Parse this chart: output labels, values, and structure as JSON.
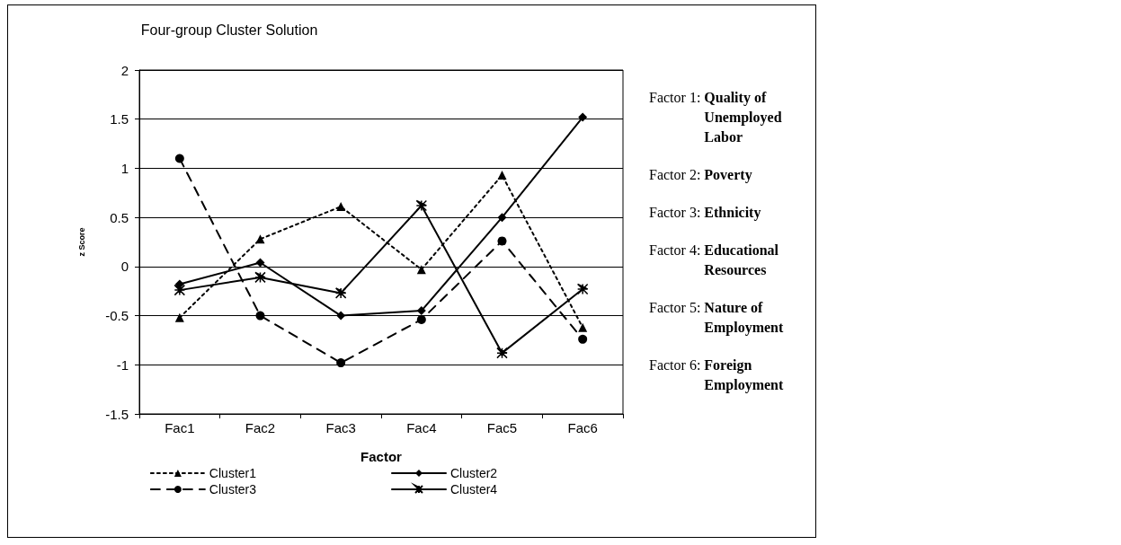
{
  "chart_data": {
    "type": "line",
    "title": "Four-group Cluster Solution",
    "xlabel": "Factor",
    "ylabel": "z Score",
    "categories": [
      "Fac1",
      "Fac2",
      "Fac3",
      "Fac4",
      "Fac5",
      "Fac6"
    ],
    "series": [
      {
        "name": "Cluster1",
        "color": "#000000",
        "marker": "triangle",
        "line_style": "dotted",
        "values": [
          -0.52,
          0.28,
          0.61,
          -0.03,
          0.93,
          -0.62
        ]
      },
      {
        "name": "Cluster2",
        "color": "#000000",
        "marker": "diamond",
        "line_style": "solid",
        "values": [
          -0.18,
          0.04,
          -0.5,
          -0.45,
          0.5,
          1.52
        ]
      },
      {
        "name": "Cluster3",
        "color": "#000000",
        "marker": "circle",
        "line_style": "dashed",
        "values": [
          1.1,
          -0.5,
          -0.98,
          -0.54,
          0.26,
          -0.74
        ]
      },
      {
        "name": "Cluster4",
        "color": "#000000",
        "marker": "cross",
        "line_style": "solid",
        "values": [
          -0.24,
          -0.11,
          -0.27,
          0.62,
          -0.88,
          -0.23
        ]
      }
    ],
    "ylim": [
      -1.5,
      2
    ],
    "yticks": [
      -1.5,
      -1,
      -0.5,
      0,
      0.5,
      1,
      1.5,
      2
    ],
    "grid": "y",
    "legend": "bottom",
    "annotations": [
      "Factor 1: Quality of Unemployed Labor",
      "Factor 2: Poverty",
      "Factor 3: Ethnicity",
      "Factor 4: Educational Resources",
      "Factor 5: Nature of Employment",
      "Factor 6: Foreign Employment"
    ]
  }
}
